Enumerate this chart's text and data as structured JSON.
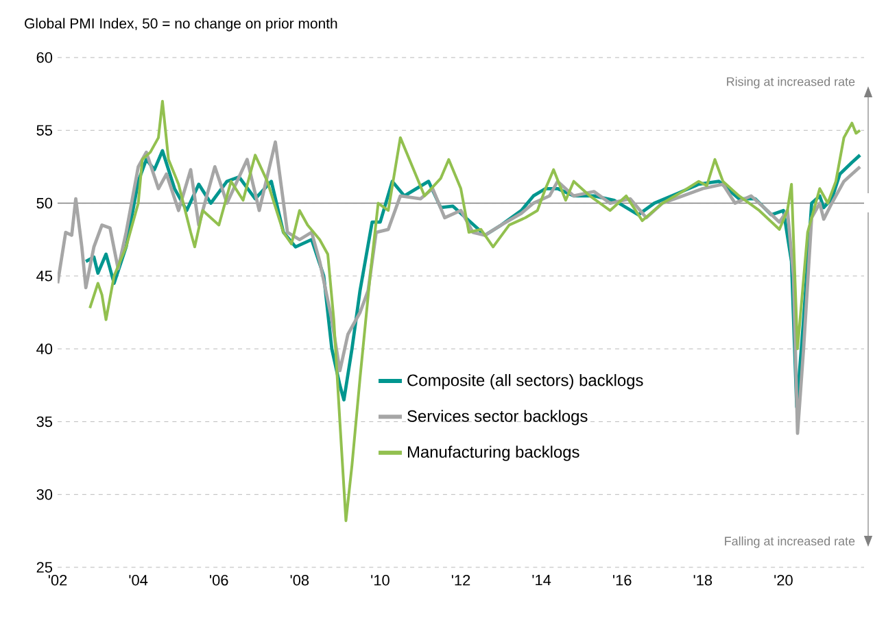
{
  "chart_data": {
    "type": "line",
    "title": "Global PMI Index, 50 = no change on prior month",
    "annotations": [
      "Rising at increased rate",
      "Falling at increased rate"
    ],
    "ylim": [
      25,
      60
    ],
    "yticks": [
      25,
      30,
      35,
      40,
      45,
      50,
      55,
      60
    ],
    "xlim": [
      2002,
      2022
    ],
    "xticks": [
      {
        "value": 2002,
        "label": "'02"
      },
      {
        "value": 2004,
        "label": "'04"
      },
      {
        "value": 2006,
        "label": "'06"
      },
      {
        "value": 2008,
        "label": "'08"
      },
      {
        "value": 2010,
        "label": "'10"
      },
      {
        "value": 2012,
        "label": "'12"
      },
      {
        "value": 2014,
        "label": "'14"
      },
      {
        "value": 2016,
        "label": "'16"
      },
      {
        "value": 2018,
        "label": "'18"
      },
      {
        "value": 2020,
        "label": "'20"
      }
    ],
    "grid": "y",
    "legend": "bottom",
    "marker": "none",
    "line_style": "solid",
    "ref_lines": [
      {
        "axis": "y",
        "value": 50,
        "color": "#808080"
      }
    ],
    "series": [
      {
        "name": "Composite (all sectors) backlogs",
        "color": "#00968f",
        "x": [
          2002.7,
          2002.9,
          2003.0,
          2003.2,
          2003.4,
          2003.7,
          2004.0,
          2004.2,
          2004.4,
          2004.6,
          2004.9,
          2005.2,
          2005.5,
          2005.8,
          2006.2,
          2006.5,
          2006.9,
          2007.3,
          2007.6,
          2007.9,
          2008.3,
          2008.6,
          2008.8,
          2009.0,
          2009.1,
          2009.3,
          2009.5,
          2009.8,
          2010.0,
          2010.3,
          2010.6,
          2011.2,
          2011.5,
          2011.8,
          2012.2,
          2012.6,
          2013.0,
          2013.5,
          2013.8,
          2014.1,
          2014.4,
          2014.8,
          2015.3,
          2015.8,
          2016.4,
          2016.8,
          2017.4,
          2017.9,
          2018.4,
          2018.9,
          2019.3,
          2019.7,
          2020.0,
          2020.2,
          2020.33,
          2020.5,
          2020.7,
          2020.9,
          2021.0,
          2021.2,
          2021.4,
          2021.7,
          2021.9
        ],
        "values": [
          46,
          46.3,
          45.2,
          46.5,
          44.5,
          47,
          51.5,
          53,
          52.3,
          53.6,
          51,
          49.5,
          51.3,
          50,
          51.5,
          51.8,
          50.3,
          51.5,
          48,
          47,
          47.5,
          45,
          40,
          37.5,
          36.5,
          40,
          44,
          48.7,
          48.7,
          51.5,
          50.5,
          51.5,
          49.7,
          49.8,
          48.8,
          47.8,
          48.5,
          49.5,
          50.5,
          51,
          51,
          50.5,
          50.5,
          50.2,
          49.2,
          50,
          50.7,
          51.3,
          51.5,
          50.3,
          50.3,
          49.2,
          49.5,
          46,
          36,
          42,
          50,
          50.5,
          49.7,
          50.3,
          52,
          52.8,
          53.3
        ]
      },
      {
        "name": "Services sector backlogs",
        "color": "#a6a6a6",
        "x": [
          2002.0,
          2002.2,
          2002.35,
          2002.45,
          2002.6,
          2002.7,
          2002.9,
          2003.1,
          2003.3,
          2003.5,
          2003.7,
          2004.0,
          2004.2,
          2004.5,
          2004.7,
          2005.0,
          2005.3,
          2005.5,
          2005.9,
          2006.2,
          2006.7,
          2007.0,
          2007.4,
          2007.7,
          2008.0,
          2008.3,
          2008.5,
          2008.8,
          2009.0,
          2009.2,
          2009.5,
          2009.7,
          2009.9,
          2010.2,
          2010.5,
          2011.0,
          2011.3,
          2011.6,
          2012.0,
          2012.3,
          2012.6,
          2013.0,
          2013.5,
          2013.8,
          2014.2,
          2014.4,
          2014.8,
          2015.3,
          2015.7,
          2016.2,
          2016.6,
          2017.0,
          2017.5,
          2018.0,
          2018.5,
          2018.8,
          2019.2,
          2019.6,
          2019.9,
          2020.1,
          2020.25,
          2020.35,
          2020.5,
          2020.7,
          2020.9,
          2021.0,
          2021.2,
          2021.5,
          2021.9
        ],
        "values": [
          44.5,
          48,
          47.8,
          50.3,
          47,
          44.2,
          47,
          48.5,
          48.3,
          45.5,
          48,
          52.5,
          53.5,
          51,
          52,
          49.5,
          52.3,
          48.5,
          52.5,
          50,
          53,
          49.5,
          54.2,
          48,
          47.5,
          48,
          46,
          42,
          38.5,
          41,
          42.5,
          44,
          48,
          48.2,
          50.5,
          50.3,
          51,
          49,
          49.5,
          48,
          47.8,
          48.5,
          49.3,
          50,
          50.5,
          51.5,
          50.5,
          50.8,
          50,
          50.3,
          49,
          50,
          50.5,
          51,
          51.3,
          50,
          50.5,
          49.5,
          48.7,
          49.5,
          45,
          34.2,
          40,
          49,
          50,
          48.9,
          50,
          51.5,
          52.5
        ]
      },
      {
        "name": "Manufacturing backlogs",
        "color": "#92c04f",
        "x": [
          2002.8,
          2003.0,
          2003.1,
          2003.2,
          2003.4,
          2003.7,
          2004.0,
          2004.1,
          2004.3,
          2004.5,
          2004.6,
          2004.75,
          2005.0,
          2005.3,
          2005.4,
          2005.6,
          2006.0,
          2006.3,
          2006.6,
          2006.9,
          2007.2,
          2007.6,
          2007.8,
          2008.0,
          2008.2,
          2008.5,
          2008.7,
          2008.85,
          2009.0,
          2009.15,
          2009.3,
          2009.5,
          2009.75,
          2009.95,
          2010.2,
          2010.5,
          2010.8,
          2011.1,
          2011.5,
          2011.7,
          2012.0,
          2012.2,
          2012.5,
          2012.8,
          2013.2,
          2013.6,
          2013.9,
          2014.1,
          2014.3,
          2014.6,
          2014.8,
          2015.2,
          2015.7,
          2016.1,
          2016.5,
          2017.0,
          2017.5,
          2017.9,
          2018.1,
          2018.3,
          2018.5,
          2018.9,
          2019.4,
          2019.9,
          2020.1,
          2020.2,
          2020.35,
          2020.6,
          2020.9,
          2021.1,
          2021.3,
          2021.5,
          2021.7,
          2021.8,
          2021.9
        ],
        "values": [
          42.8,
          44.5,
          43.7,
          42,
          45,
          47,
          50,
          53,
          53.5,
          54.5,
          57,
          53,
          51.3,
          48,
          47,
          49.5,
          48.5,
          51.5,
          50.2,
          53.3,
          51.5,
          48,
          47.2,
          49.5,
          48.5,
          47.5,
          46.5,
          42,
          35,
          28.2,
          32,
          38,
          45,
          50,
          49.5,
          54.5,
          52.5,
          50.5,
          51.7,
          53,
          51,
          48,
          48.2,
          47,
          48.5,
          49,
          49.5,
          51,
          52.3,
          50.2,
          51.5,
          50.5,
          49.5,
          50.5,
          48.8,
          50,
          50.8,
          51.5,
          51.2,
          53,
          51.5,
          50.5,
          49.5,
          48.2,
          49.5,
          51.3,
          40,
          48,
          51,
          50,
          51.5,
          54.5,
          55.5,
          54.8,
          55
        ]
      }
    ]
  }
}
